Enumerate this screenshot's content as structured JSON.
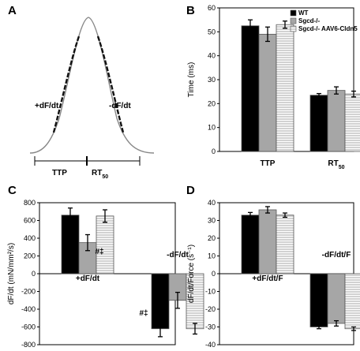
{
  "panel_labels": [
    "A",
    "B",
    "C",
    "D"
  ],
  "panel_a": {
    "rise_label": "+dF/dt",
    "fall_label": "-dF/dt",
    "ttp_label": "TTP",
    "rt_label": "RT",
    "rt_subscript": "50"
  },
  "legend": [
    "WT",
    "Sgcd-/-",
    "Sgcd-/- AAV6-Cldn5"
  ],
  "colors": {
    "WT": "#000000",
    "Sgcd": "#a6a6a6",
    "Cldn5_fill": "#ffffff",
    "Cldn5_hatch": "#9a9a9a",
    "bar_edge": "#555555",
    "trace": "#888888"
  },
  "annotations": {
    "c_pos": "#‡",
    "c_neg": "#‡"
  },
  "chart_data": [
    {
      "panel": "B",
      "type": "bar",
      "ylabel": "Time (ms)",
      "ylim": [
        0,
        60
      ],
      "yticks": [
        "0",
        "10",
        "20",
        "30",
        "40",
        "50",
        "60"
      ],
      "categories": [
        "TTP",
        "RT"
      ],
      "category_subscripts": [
        "",
        "50"
      ],
      "series": [
        {
          "name": "WT",
          "values": [
            52.5,
            23.5
          ],
          "errors": [
            2.5,
            0.7
          ]
        },
        {
          "name": "Sgcd-/-",
          "values": [
            49,
            25.5
          ],
          "errors": [
            3,
            1.5
          ]
        },
        {
          "name": "Sgcd-/- AAV6-Cldn5",
          "values": [
            53,
            24
          ],
          "errors": [
            1.5,
            1.2
          ]
        }
      ],
      "legend_position": "top-right"
    },
    {
      "panel": "C",
      "type": "bar",
      "ylabel": "dF/dt (mN/mm²/s)",
      "ylim": [
        -800,
        800
      ],
      "yticks": [
        "-800",
        "-600",
        "-400",
        "-200",
        "0",
        "200",
        "400",
        "600",
        "800"
      ],
      "categories": [
        "+dF/dt",
        "-dF/dt"
      ],
      "series": [
        {
          "name": "WT",
          "values": [
            660,
            -620
          ],
          "errors": [
            80,
            90
          ]
        },
        {
          "name": "Sgcd-/-",
          "values": [
            350,
            -300
          ],
          "errors": [
            90,
            90
          ]
        },
        {
          "name": "Sgcd-/- AAV6-Cldn5",
          "values": [
            650,
            -620
          ],
          "errors": [
            70,
            60
          ]
        }
      ]
    },
    {
      "panel": "D",
      "type": "bar",
      "ylabel": "dF/dt/Force (s⁻¹)",
      "ylim": [
        -40,
        40
      ],
      "yticks": [
        "-40",
        "-30",
        "-20",
        "-10",
        "0",
        "10",
        "20",
        "30",
        "40"
      ],
      "categories": [
        "+dF/dt/F",
        "-dF/dt/F"
      ],
      "series": [
        {
          "name": "WT",
          "values": [
            33,
            -30
          ],
          "errors": [
            1.5,
            1
          ]
        },
        {
          "name": "Sgcd-/-",
          "values": [
            36,
            -28
          ],
          "errors": [
            1.8,
            1.5
          ]
        },
        {
          "name": "Sgcd-/- AAV6-Cldn5",
          "values": [
            33,
            -31
          ],
          "errors": [
            1.2,
            1
          ]
        }
      ]
    }
  ]
}
